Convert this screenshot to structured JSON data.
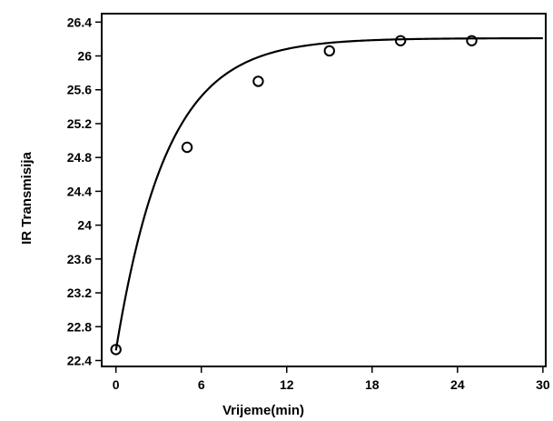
{
  "chart_data": {
    "type": "scatter",
    "xlabel": "Vrijeme(min)",
    "ylabel": "IR Transmisija",
    "xlim": [
      -1,
      30.2
    ],
    "ylim": [
      22.33,
      26.5
    ],
    "x_ticks": [
      0,
      6,
      12,
      18,
      24,
      30
    ],
    "y_ticks": [
      22.4,
      22.8,
      23.2,
      23.6,
      24,
      24.4,
      24.8,
      25.2,
      25.6,
      26,
      26.4
    ],
    "grid": false,
    "series": [
      {
        "marker": "open-circle",
        "points": [
          {
            "x": 0,
            "y": 22.53
          },
          {
            "x": 5,
            "y": 24.92
          },
          {
            "x": 10,
            "y": 25.7
          },
          {
            "x": 15,
            "y": 26.06
          },
          {
            "x": 20,
            "y": 26.18
          },
          {
            "x": 25,
            "y": 26.18
          }
        ]
      },
      {
        "style": "line",
        "fit": {
          "y_max": 26.21,
          "y_min": 22.52,
          "rate_per_min": 0.28
        },
        "x_range": [
          0,
          30
        ]
      }
    ],
    "colors": {
      "line": "#000000",
      "marker": "#000000",
      "axes": "#000000"
    }
  }
}
